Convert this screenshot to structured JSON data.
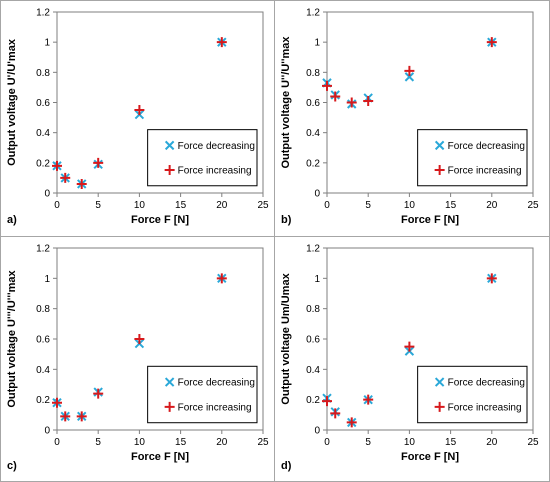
{
  "figure": {
    "border_color": "#a6a6a6",
    "decreasing_color": "#2aa8d8",
    "increasing_color": "#d7191c"
  },
  "chart_data": [
    {
      "type": "scatter",
      "panel_label": "a)",
      "xlabel": "Force F [N]",
      "ylabel": "Output voltage U'/U'max",
      "xlim": [
        0,
        25
      ],
      "ylim": [
        0,
        1.2
      ],
      "xticks": [
        "0",
        "5",
        "10",
        "15",
        "20",
        "25"
      ],
      "yticks": [
        "0",
        "0.2",
        "0.4",
        "0.6",
        "0.8",
        "1",
        "1.2"
      ],
      "legend_position": "bottom-right",
      "series": [
        {
          "name": "Force decreasing",
          "marker": "x",
          "x": [
            0,
            1,
            3,
            5,
            10,
            20
          ],
          "y": [
            0.18,
            0.1,
            0.06,
            0.19,
            0.52,
            1.0
          ]
        },
        {
          "name": "Force increasing",
          "marker": "+",
          "x": [
            0,
            1,
            3,
            5,
            10,
            20
          ],
          "y": [
            0.18,
            0.1,
            0.06,
            0.2,
            0.55,
            1.0
          ]
        }
      ]
    },
    {
      "type": "scatter",
      "panel_label": "b)",
      "xlabel": "Force F [N]",
      "ylabel": "Output voltage U''/U''max",
      "xlim": [
        0,
        25
      ],
      "ylim": [
        0,
        1.2
      ],
      "xticks": [
        "0",
        "5",
        "10",
        "15",
        "20",
        "25"
      ],
      "yticks": [
        "0",
        "0.2",
        "0.4",
        "0.6",
        "0.8",
        "1",
        "1.2"
      ],
      "legend_position": "bottom-right",
      "series": [
        {
          "name": "Force decreasing",
          "marker": "x",
          "x": [
            0,
            1,
            3,
            5,
            10,
            20
          ],
          "y": [
            0.73,
            0.65,
            0.59,
            0.63,
            0.77,
            1.0
          ]
        },
        {
          "name": "Force increasing",
          "marker": "+",
          "x": [
            0,
            1,
            3,
            5,
            10,
            20
          ],
          "y": [
            0.71,
            0.64,
            0.6,
            0.61,
            0.81,
            1.0
          ]
        }
      ]
    },
    {
      "type": "scatter",
      "panel_label": "c)",
      "xlabel": "Force F [N]",
      "ylabel": "Output voltage U'''/U'''max",
      "xlim": [
        0,
        25
      ],
      "ylim": [
        0,
        1.2
      ],
      "xticks": [
        "0",
        "5",
        "10",
        "15",
        "20",
        "25"
      ],
      "yticks": [
        "0",
        "0.2",
        "0.4",
        "0.6",
        "0.8",
        "1",
        "1.2"
      ],
      "legend_position": "bottom-right",
      "series": [
        {
          "name": "Force decreasing",
          "marker": "x",
          "x": [
            0,
            1,
            3,
            5,
            10,
            20
          ],
          "y": [
            0.18,
            0.09,
            0.09,
            0.25,
            0.57,
            1.0
          ]
        },
        {
          "name": "Force increasing",
          "marker": "+",
          "x": [
            0,
            1,
            3,
            5,
            10,
            20
          ],
          "y": [
            0.18,
            0.09,
            0.09,
            0.24,
            0.6,
            1.0
          ]
        }
      ]
    },
    {
      "type": "scatter",
      "panel_label": "d)",
      "xlabel": "Force F [N]",
      "ylabel": "Output voltage Um/Umax",
      "xlim": [
        0,
        25
      ],
      "ylim": [
        0,
        1.2
      ],
      "xticks": [
        "0",
        "5",
        "10",
        "15",
        "20",
        "25"
      ],
      "yticks": [
        "0",
        "0.2",
        "0.4",
        "0.6",
        "0.8",
        "1",
        "1.2"
      ],
      "legend_position": "bottom-right",
      "series": [
        {
          "name": "Force decreasing",
          "marker": "x",
          "x": [
            0,
            1,
            3,
            5,
            10,
            20
          ],
          "y": [
            0.21,
            0.12,
            0.05,
            0.2,
            0.52,
            1.0
          ]
        },
        {
          "name": "Force increasing",
          "marker": "+",
          "x": [
            0,
            1,
            3,
            5,
            10,
            20
          ],
          "y": [
            0.19,
            0.11,
            0.05,
            0.2,
            0.55,
            1.0
          ]
        }
      ]
    }
  ]
}
